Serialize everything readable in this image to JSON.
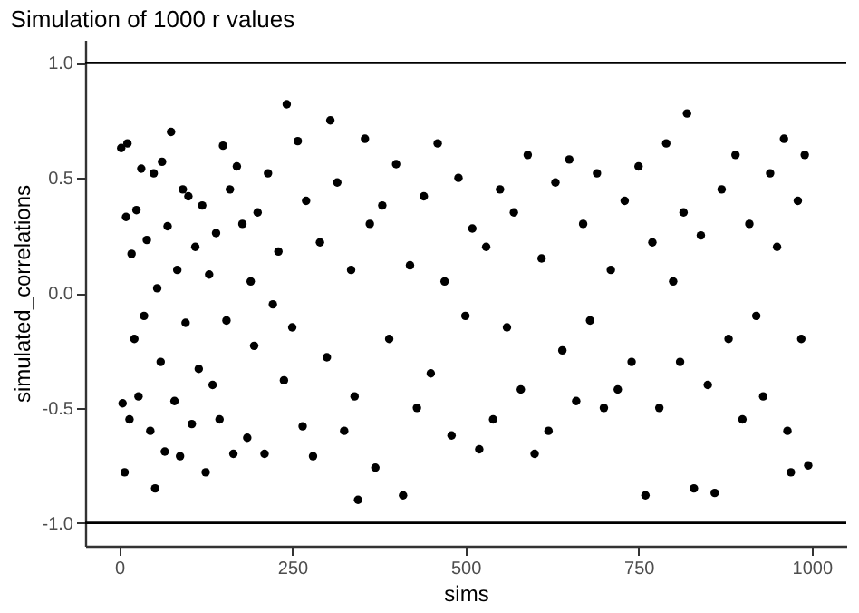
{
  "chart_data": {
    "type": "scatter",
    "title": "Simulation of 1000 r values",
    "xlabel": "sims",
    "ylabel": "simulated_correlations",
    "x": [
      3,
      5,
      8,
      10,
      12,
      15,
      18,
      22,
      25,
      28,
      32,
      36,
      40,
      45,
      50,
      52,
      55,
      60,
      62,
      66,
      70,
      75,
      80,
      84,
      88,
      92,
      96,
      100,
      105,
      110,
      115,
      120,
      125,
      130,
      135,
      140,
      145,
      150,
      155,
      160,
      165,
      170,
      178,
      185,
      190,
      195,
      200,
      210,
      215,
      222,
      230,
      238,
      242,
      250,
      258,
      265,
      270,
      280,
      290,
      300,
      305,
      315,
      325,
      335,
      340,
      345,
      355,
      362,
      370,
      380,
      390,
      400,
      410,
      420,
      430,
      440,
      450,
      460,
      470,
      480,
      490,
      500,
      510,
      520,
      530,
      540,
      550,
      560,
      570,
      580,
      590,
      600,
      610,
      620,
      630,
      640,
      650,
      660,
      670,
      680,
      690,
      700,
      710,
      720,
      730,
      740,
      750,
      760,
      770,
      780,
      790,
      800,
      810,
      815,
      820,
      830,
      840,
      850,
      860,
      870,
      880,
      890,
      900,
      910,
      920,
      930,
      940,
      950,
      960,
      965,
      970,
      980,
      985,
      990,
      995
    ],
    "values": [
      0.63,
      -0.48,
      -0.78,
      0.33,
      0.65,
      -0.55,
      0.17,
      -0.2,
      0.36,
      -0.45,
      0.54,
      -0.1,
      0.23,
      -0.6,
      0.52,
      -0.85,
      0.02,
      -0.3,
      0.57,
      -0.69,
      0.29,
      0.7,
      -0.47,
      0.1,
      -0.71,
      0.45,
      -0.13,
      0.42,
      -0.57,
      0.2,
      -0.33,
      0.38,
      -0.78,
      0.08,
      -0.4,
      0.26,
      -0.55,
      0.64,
      -0.12,
      0.45,
      -0.7,
      0.55,
      0.3,
      -0.63,
      0.05,
      -0.23,
      0.35,
      -0.7,
      0.52,
      -0.05,
      0.18,
      -0.38,
      0.82,
      -0.15,
      0.66,
      -0.58,
      0.4,
      -0.71,
      0.22,
      -0.28,
      0.75,
      0.48,
      -0.6,
      0.1,
      -0.45,
      -0.9,
      0.67,
      0.3,
      -0.76,
      0.38,
      -0.2,
      0.56,
      -0.88,
      0.12,
      -0.5,
      0.42,
      -0.35,
      0.65,
      0.05,
      -0.62,
      0.5,
      -0.1,
      0.28,
      -0.68,
      0.2,
      -0.55,
      0.45,
      -0.15,
      0.35,
      -0.42,
      0.6,
      -0.7,
      0.15,
      -0.6,
      0.48,
      -0.25,
      0.58,
      -0.47,
      0.3,
      -0.12,
      0.52,
      -0.5,
      0.1,
      -0.42,
      0.4,
      -0.3,
      0.55,
      -0.88,
      0.22,
      -0.5,
      0.65,
      0.05,
      -0.3,
      0.35,
      0.78,
      -0.85,
      0.25,
      -0.4,
      -0.87,
      0.45,
      -0.2,
      0.6,
      -0.55,
      0.3,
      -0.1,
      -0.45,
      0.52,
      0.2,
      0.67,
      -0.6,
      -0.78,
      0.4,
      -0.2,
      0.6,
      -0.75
    ],
    "color": "#000000",
    "marker": "circle",
    "xlim": [
      -49,
      1050
    ],
    "ylim": [
      -1.1,
      1.1
    ],
    "xticks": [
      0,
      250,
      500,
      750,
      1000
    ],
    "yticks": [
      {
        "value": -1,
        "label": "-1.0"
      },
      {
        "value": -0.5,
        "label": "-0.5"
      },
      {
        "value": 0,
        "label": "0.0"
      },
      {
        "value": 0.5,
        "label": "0.5"
      },
      {
        "value": 1,
        "label": "1.0"
      }
    ],
    "ref_lines": [
      {
        "axis": "y",
        "value": 1,
        "color": "#000000"
      },
      {
        "axis": "y",
        "value": -1,
        "color": "#000000"
      }
    ],
    "grid": false
  }
}
